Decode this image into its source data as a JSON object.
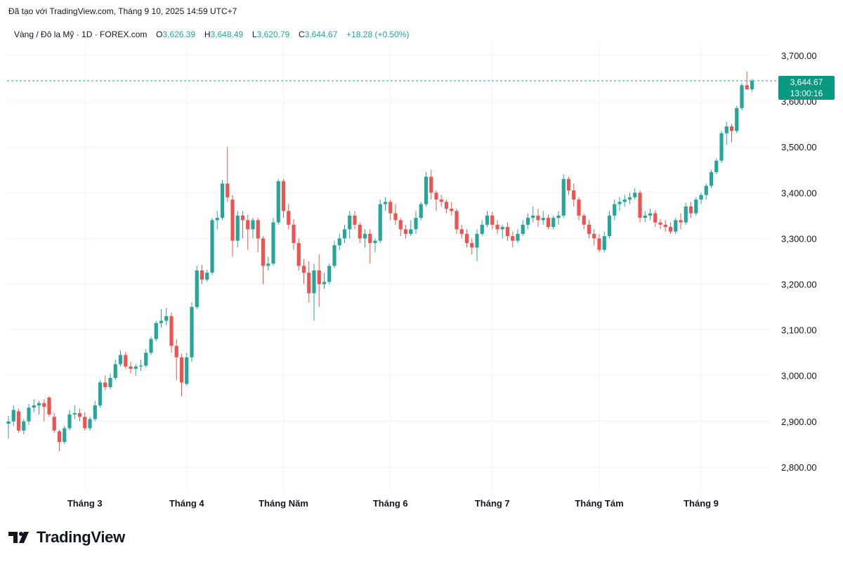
{
  "header": {
    "created_text": "Đã tạo với TradingView.com, Tháng 9 10, 2025 14:59 UTC+7"
  },
  "legend": {
    "symbol": "Vàng / Đô la Mỹ · 1D · FOREX.com",
    "o_label": "O",
    "o_value": "3,626.39",
    "h_label": "H",
    "h_value": "3,648.49",
    "l_label": "L",
    "l_value": "3,620.79",
    "c_label": "C",
    "c_value": "3,644.67",
    "change": "+18.28 (+0.50%)"
  },
  "price_badge": {
    "price": "3,644.67",
    "countdown": "13:00:16"
  },
  "brand": {
    "name": "TradingView"
  },
  "colors": {
    "up": "#26a69a",
    "down": "#ef5350",
    "grid": "#f0f3fa",
    "price_line": "#26a69a",
    "badge": "#089981"
  },
  "chart_data": {
    "type": "candlestick",
    "y_axis": {
      "min": 2740,
      "max": 3750,
      "ticks": [
        2800,
        2900,
        3000,
        3100,
        3200,
        3300,
        3400,
        3500,
        3600,
        3700
      ],
      "tick_labels": [
        "2,800.00",
        "2,900.00",
        "3,000.00",
        "3,100.00",
        "3,200.00",
        "3,300.00",
        "3,400.00",
        "3,500.00",
        "3,600.00",
        "3,700.00"
      ]
    },
    "x_axis": {
      "labels": [
        {
          "label": "Tháng 3",
          "index": 15
        },
        {
          "label": "Tháng 4",
          "index": 35
        },
        {
          "label": "Tháng Năm",
          "index": 54
        },
        {
          "label": "Tháng 6",
          "index": 75
        },
        {
          "label": "Tháng 7",
          "index": 95
        },
        {
          "label": "Tháng Tám",
          "index": 116
        },
        {
          "label": "Tháng 9",
          "index": 136
        }
      ]
    },
    "grid": true,
    "last_price": 3644.67,
    "ohlc": [
      [
        2895,
        2912,
        2862,
        2900
      ],
      [
        2900,
        2935,
        2890,
        2925
      ],
      [
        2922,
        2928,
        2875,
        2880
      ],
      [
        2880,
        2905,
        2872,
        2900
      ],
      [
        2900,
        2938,
        2892,
        2930
      ],
      [
        2930,
        2948,
        2920,
        2935
      ],
      [
        2935,
        2945,
        2915,
        2940
      ],
      [
        2940,
        2948,
        2900,
        2932
      ],
      [
        2952,
        2955,
        2910,
        2915
      ],
      [
        2910,
        2918,
        2875,
        2880
      ],
      [
        2878,
        2882,
        2835,
        2855
      ],
      [
        2855,
        2890,
        2850,
        2885
      ],
      [
        2885,
        2925,
        2880,
        2915
      ],
      [
        2915,
        2935,
        2905,
        2918
      ],
      [
        2918,
        2928,
        2900,
        2910
      ],
      [
        2910,
        2920,
        2880,
        2885
      ],
      [
        2885,
        2910,
        2880,
        2905
      ],
      [
        2905,
        2945,
        2900,
        2935
      ],
      [
        2935,
        2990,
        2930,
        2985
      ],
      [
        2985,
        3000,
        2968,
        2975
      ],
      [
        2975,
        3005,
        2970,
        2995
      ],
      [
        2995,
        3035,
        2990,
        3025
      ],
      [
        3025,
        3055,
        3020,
        3045
      ],
      [
        3045,
        3052,
        3015,
        3020
      ],
      [
        3020,
        3030,
        3005,
        3015
      ],
      [
        3015,
        3025,
        3000,
        3020
      ],
      [
        3020,
        3035,
        3010,
        3022
      ],
      [
        3022,
        3058,
        3018,
        3050
      ],
      [
        3050,
        3085,
        3045,
        3080
      ],
      [
        3080,
        3120,
        3075,
        3115
      ],
      [
        3115,
        3145,
        3105,
        3120
      ],
      [
        3120,
        3148,
        3110,
        3130
      ],
      [
        3130,
        3138,
        3050,
        3065
      ],
      [
        3065,
        3080,
        2990,
        3040
      ],
      [
        3040,
        3048,
        2955,
        2985
      ],
      [
        2982,
        3050,
        2978,
        3040
      ],
      [
        3040,
        3160,
        3030,
        3150
      ],
      [
        3150,
        3240,
        3145,
        3230
      ],
      [
        3230,
        3242,
        3200,
        3210
      ],
      [
        3210,
        3232,
        3205,
        3225
      ],
      [
        3225,
        3345,
        3220,
        3340
      ],
      [
        3340,
        3360,
        3320,
        3345
      ],
      [
        3345,
        3428,
        3340,
        3420
      ],
      [
        3420,
        3500,
        3380,
        3390
      ],
      [
        3385,
        3395,
        3260,
        3295
      ],
      [
        3295,
        3360,
        3280,
        3350
      ],
      [
        3350,
        3360,
        3300,
        3340
      ],
      [
        3340,
        3352,
        3275,
        3320
      ],
      [
        3320,
        3345,
        3300,
        3340
      ],
      [
        3340,
        3345,
        3270,
        3300
      ],
      [
        3300,
        3305,
        3200,
        3240
      ],
      [
        3240,
        3260,
        3230,
        3245
      ],
      [
        3245,
        3345,
        3240,
        3335
      ],
      [
        3335,
        3430,
        3330,
        3425
      ],
      [
        3425,
        3430,
        3345,
        3360
      ],
      [
        3360,
        3375,
        3320,
        3330
      ],
      [
        3330,
        3342,
        3275,
        3290
      ],
      [
        3290,
        3300,
        3230,
        3240
      ],
      [
        3240,
        3255,
        3200,
        3225
      ],
      [
        3225,
        3250,
        3160,
        3180
      ],
      [
        3180,
        3245,
        3120,
        3230
      ],
      [
        3230,
        3265,
        3150,
        3200
      ],
      [
        3200,
        3225,
        3190,
        3205
      ],
      [
        3205,
        3245,
        3200,
        3240
      ],
      [
        3240,
        3295,
        3235,
        3285
      ],
      [
        3285,
        3310,
        3275,
        3300
      ],
      [
        3300,
        3330,
        3290,
        3320
      ],
      [
        3320,
        3360,
        3300,
        3350
      ],
      [
        3350,
        3360,
        3320,
        3330
      ],
      [
        3330,
        3335,
        3290,
        3300
      ],
      [
        3300,
        3320,
        3280,
        3310
      ],
      [
        3310,
        3320,
        3245,
        3290
      ],
      [
        3290,
        3300,
        3270,
        3295
      ],
      [
        3295,
        3385,
        3290,
        3375
      ],
      [
        3375,
        3390,
        3360,
        3380
      ],
      [
        3380,
        3385,
        3340,
        3355
      ],
      [
        3355,
        3375,
        3330,
        3340
      ],
      [
        3340,
        3345,
        3305,
        3320
      ],
      [
        3320,
        3330,
        3300,
        3310
      ],
      [
        3310,
        3340,
        3305,
        3320
      ],
      [
        3320,
        3360,
        3310,
        3345
      ],
      [
        3345,
        3380,
        3340,
        3375
      ],
      [
        3375,
        3445,
        3370,
        3435
      ],
      [
        3435,
        3450,
        3385,
        3400
      ],
      [
        3400,
        3405,
        3360,
        3385
      ],
      [
        3385,
        3395,
        3370,
        3380
      ],
      [
        3380,
        3385,
        3355,
        3365
      ],
      [
        3365,
        3380,
        3350,
        3360
      ],
      [
        3360,
        3365,
        3310,
        3320
      ],
      [
        3320,
        3330,
        3300,
        3310
      ],
      [
        3310,
        3320,
        3280,
        3290
      ],
      [
        3290,
        3300,
        3265,
        3280
      ],
      [
        3280,
        3320,
        3250,
        3310
      ],
      [
        3310,
        3340,
        3305,
        3330
      ],
      [
        3330,
        3360,
        3325,
        3350
      ],
      [
        3350,
        3358,
        3320,
        3330
      ],
      [
        3330,
        3340,
        3310,
        3320
      ],
      [
        3320,
        3330,
        3300,
        3325
      ],
      [
        3325,
        3335,
        3295,
        3305
      ],
      [
        3305,
        3315,
        3280,
        3295
      ],
      [
        3295,
        3320,
        3290,
        3310
      ],
      [
        3310,
        3340,
        3305,
        3330
      ],
      [
        3330,
        3355,
        3320,
        3345
      ],
      [
        3345,
        3370,
        3335,
        3350
      ],
      [
        3350,
        3365,
        3325,
        3340
      ],
      [
        3340,
        3360,
        3330,
        3345
      ],
      [
        3345,
        3352,
        3320,
        3325
      ],
      [
        3325,
        3350,
        3320,
        3345
      ],
      [
        3345,
        3360,
        3330,
        3350
      ],
      [
        3350,
        3440,
        3345,
        3430
      ],
      [
        3430,
        3435,
        3395,
        3405
      ],
      [
        3405,
        3420,
        3370,
        3385
      ],
      [
        3385,
        3390,
        3340,
        3350
      ],
      [
        3350,
        3355,
        3320,
        3330
      ],
      [
        3330,
        3340,
        3300,
        3310
      ],
      [
        3310,
        3320,
        3285,
        3300
      ],
      [
        3300,
        3310,
        3270,
        3275
      ],
      [
        3275,
        3315,
        3270,
        3305
      ],
      [
        3305,
        3360,
        3300,
        3350
      ],
      [
        3350,
        3385,
        3340,
        3375
      ],
      [
        3375,
        3390,
        3360,
        3380
      ],
      [
        3380,
        3395,
        3370,
        3385
      ],
      [
        3385,
        3400,
        3375,
        3390
      ],
      [
        3390,
        3410,
        3385,
        3400
      ],
      [
        3400,
        3405,
        3335,
        3345
      ],
      [
        3345,
        3360,
        3335,
        3350
      ],
      [
        3350,
        3365,
        3340,
        3355
      ],
      [
        3355,
        3362,
        3325,
        3335
      ],
      [
        3335,
        3342,
        3320,
        3330
      ],
      [
        3330,
        3340,
        3315,
        3325
      ],
      [
        3325,
        3335,
        3310,
        3315
      ],
      [
        3315,
        3345,
        3310,
        3340
      ],
      [
        3340,
        3355,
        3320,
        3335
      ],
      [
        3335,
        3378,
        3330,
        3370
      ],
      [
        3370,
        3380,
        3345,
        3355
      ],
      [
        3355,
        3390,
        3350,
        3385
      ],
      [
        3385,
        3400,
        3375,
        3395
      ],
      [
        3395,
        3420,
        3385,
        3415
      ],
      [
        3415,
        3450,
        3410,
        3445
      ],
      [
        3445,
        3475,
        3440,
        3470
      ],
      [
        3470,
        3535,
        3465,
        3530
      ],
      [
        3530,
        3555,
        3505,
        3545
      ],
      [
        3545,
        3550,
        3510,
        3535
      ],
      [
        3535,
        3590,
        3530,
        3585
      ],
      [
        3585,
        3640,
        3580,
        3635
      ],
      [
        3635,
        3665,
        3625,
        3626
      ],
      [
        3626.39,
        3648.49,
        3620.79,
        3644.67
      ]
    ]
  }
}
